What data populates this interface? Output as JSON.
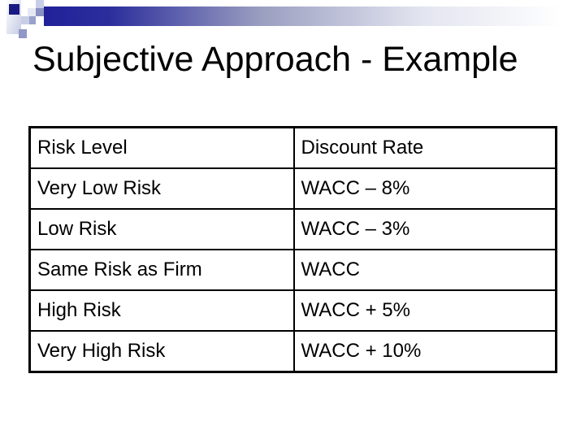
{
  "slide": {
    "title": "Subjective Approach - Example"
  },
  "table": {
    "columns": [
      "Risk Level",
      "Discount Rate"
    ],
    "rows": [
      [
        "Very Low Risk",
        "WACC – 8%"
      ],
      [
        "Low Risk",
        "WACC – 3%"
      ],
      [
        "Same Risk as Firm",
        "WACC"
      ],
      [
        "High Risk",
        "WACC + 5%"
      ],
      [
        "Very High Risk",
        "WACC + 10%"
      ]
    ]
  },
  "colors": {
    "banner-navy": "#21219a",
    "banner-mid": "#9a9ec0",
    "square-navy": "#191984",
    "mosaic-light": "#c9cee8",
    "mosaic-lighter": "#e6e8f4",
    "mosaic-medium": "#8a92c2",
    "table-border": "#000000",
    "text": "#000000"
  }
}
